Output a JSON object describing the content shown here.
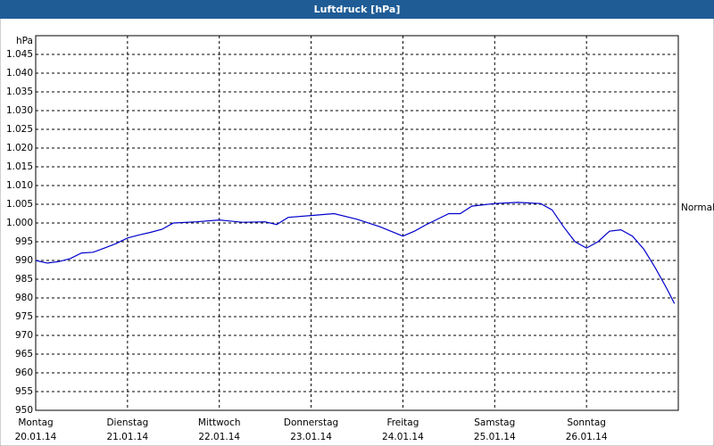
{
  "chart_data": {
    "type": "line",
    "title": "Luftdruck [hPa]",
    "y_unit": "hPa",
    "xlim": [
      0,
      168
    ],
    "xticks": [
      {
        "value": 0,
        "label": "Montag",
        "date": "20.01.14"
      },
      {
        "value": 24,
        "label": "Dienstag",
        "date": "21.01.14"
      },
      {
        "value": 48,
        "label": "Mittwoch",
        "date": "22.01.14"
      },
      {
        "value": 72,
        "label": "Donnerstag",
        "date": "23.01.14"
      },
      {
        "value": 96,
        "label": "Freitag",
        "date": "24.01.14"
      },
      {
        "value": 120,
        "label": "Samstag",
        "date": "25.01.14"
      },
      {
        "value": 144,
        "label": "Sonntag",
        "date": "26.01.14"
      }
    ],
    "ylim": [
      950,
      1050
    ],
    "yticks": [
      950,
      955,
      960,
      965,
      970,
      975,
      980,
      985,
      990,
      995,
      {
        "value": 1000,
        "label": "1.000"
      },
      {
        "value": 1005,
        "label": "1.005"
      },
      {
        "value": 1010,
        "label": "1.010"
      },
      {
        "value": 1015,
        "label": "1.015"
      },
      {
        "value": 1020,
        "label": "1.020"
      },
      {
        "value": 1025,
        "label": "1.025"
      },
      {
        "value": 1030,
        "label": "1.030"
      },
      {
        "value": 1035,
        "label": "1.035"
      },
      {
        "value": 1040,
        "label": "1.040"
      },
      {
        "value": 1045,
        "label": "1.045"
      }
    ],
    "grid": true,
    "annotation": {
      "text": "Normal",
      "value": 1004
    },
    "series": [
      {
        "name": "Luftdruck",
        "color": "#0000cc",
        "x": [
          0,
          3,
          6,
          9,
          12,
          15,
          18,
          21,
          24,
          27,
          30,
          33,
          36,
          42,
          48,
          54,
          60,
          63,
          66,
          72,
          78,
          84,
          90,
          96,
          99,
          102,
          108,
          111,
          114,
          120,
          126,
          132,
          135,
          138,
          141,
          144,
          147,
          150,
          153,
          156,
          159,
          162,
          165,
          167
        ],
        "values": [
          990,
          989.3,
          989.7,
          990.5,
          992,
          992.2,
          993.3,
          994.5,
          996,
          996.8,
          997.5,
          998.3,
          1000,
          1000.3,
          1000.8,
          1000.2,
          1000.3,
          999.6,
          1001.5,
          1002,
          1002.5,
          1001,
          999,
          996.5,
          997.8,
          999.5,
          1002.5,
          1002.5,
          1004.5,
          1005.2,
          1005.5,
          1005.2,
          1003.5,
          999,
          995,
          993.3,
          995,
          997.8,
          998.2,
          996.5,
          993,
          988,
          982.5,
          978.5
        ]
      }
    ]
  }
}
